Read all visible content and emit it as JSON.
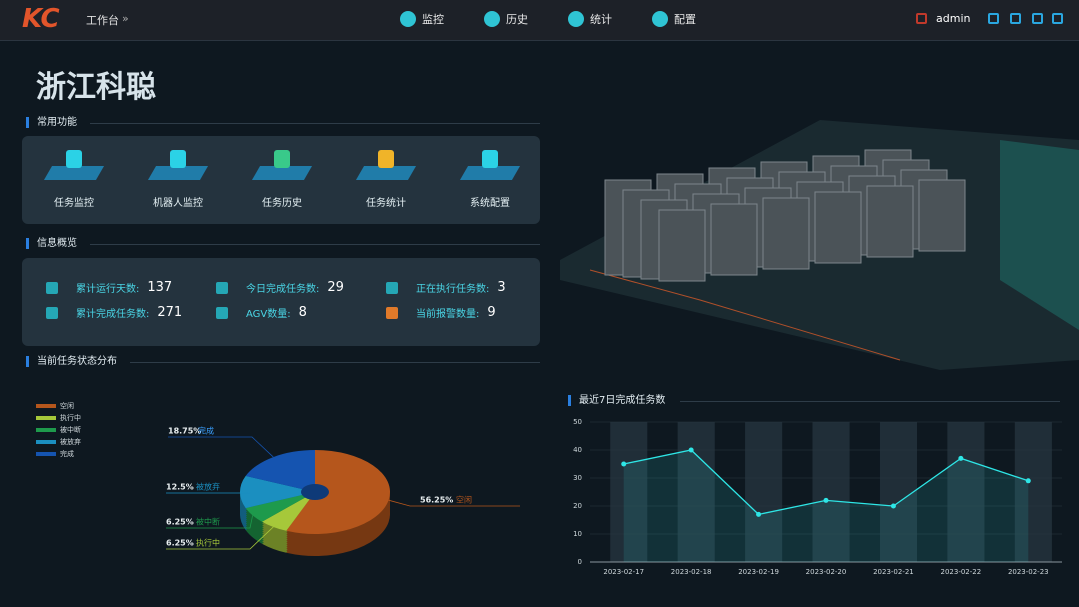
{
  "header": {
    "logo": "KC",
    "breadcrumb": "工作台",
    "nav": [
      "监控",
      "历史",
      "统计",
      "配置"
    ],
    "user": "admin"
  },
  "page_title": "浙江科聪",
  "shortcuts": {
    "title": "常用功能",
    "items": [
      "任务监控",
      "机器人监控",
      "任务历史",
      "任务统计",
      "系统配置"
    ]
  },
  "overview": {
    "title": "信息概览",
    "items": [
      {
        "label": "累计运行天数:",
        "value": 137
      },
      {
        "label": "今日完成任务数:",
        "value": 29
      },
      {
        "label": "正在执行任务数:",
        "value": 3
      },
      {
        "label": "累计完成任务数:",
        "value": 271
      },
      {
        "label": "AGV数量:",
        "value": 8
      },
      {
        "label": "当前报警数量:",
        "value": 9
      }
    ]
  },
  "chart_data": [
    {
      "type": "pie",
      "title": "当前任务状态分布",
      "categories": [
        "空闲",
        "执行中",
        "被中断",
        "被放弃",
        "完成"
      ],
      "values": [
        56.25,
        6.25,
        6.25,
        12.5,
        18.75
      ],
      "value_labels": [
        "56.25%",
        "6.25%",
        "6.25%",
        "12.5%",
        "18.75%"
      ],
      "colors": [
        "#b5561c",
        "#a6c83a",
        "#1e9a4c",
        "#1b8fc0",
        "#1554b0"
      ]
    },
    {
      "type": "line",
      "title": "最近7日完成任务数",
      "categories": [
        "2023-02-17",
        "2023-02-18",
        "2023-02-19",
        "2023-02-20",
        "2023-02-21",
        "2023-02-22",
        "2023-02-23"
      ],
      "values": [
        35,
        40,
        17,
        22,
        20,
        37,
        29
      ],
      "color": "#2ee6e6",
      "ylim": [
        0,
        50
      ],
      "yticks": [
        0,
        10,
        20,
        30,
        40,
        50
      ],
      "grid": true
    }
  ]
}
